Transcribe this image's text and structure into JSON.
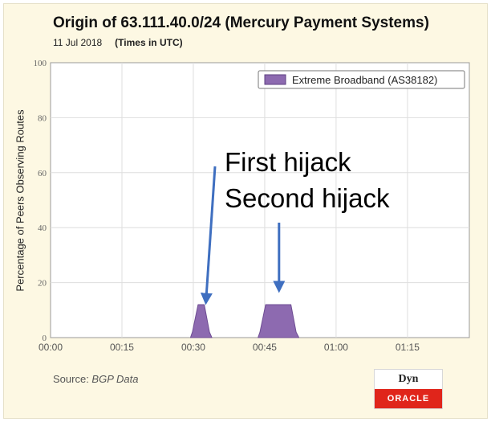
{
  "header": {
    "title": "Origin of 63.111.40.0/24 (Mercury Payment Systems)",
    "date": "11 Jul 2018",
    "timezone_note": "(Times in UTC)"
  },
  "footer": {
    "source_prefix": "Source: ",
    "source_name": "BGP Data"
  },
  "logo": {
    "top_text": "Dyn",
    "bottom_text": "ORACLE",
    "bottom_color": "#e0251b"
  },
  "annotations": [
    {
      "text": "First hijack",
      "target_x_minutes": 32,
      "target_y": 13
    },
    {
      "text": "Second hijack",
      "target_x_minutes": 47,
      "target_y": 18
    }
  ],
  "chart_data": {
    "type": "area",
    "ylabel": "Percentage of Peers Observing Routes",
    "xlim_minutes": [
      0,
      88
    ],
    "ylim": [
      0,
      100
    ],
    "x_ticks": [
      {
        "minutes": 0,
        "label": "00:00"
      },
      {
        "minutes": 15,
        "label": "00:15"
      },
      {
        "minutes": 30,
        "label": "00:30"
      },
      {
        "minutes": 45,
        "label": "00:45"
      },
      {
        "minutes": 60,
        "label": "01:00"
      },
      {
        "minutes": 75,
        "label": "01:15"
      }
    ],
    "y_ticks": [
      0,
      20,
      40,
      60,
      80,
      100
    ],
    "grid": true,
    "legend_position": "top-right",
    "series": [
      {
        "name": "Extreme Broadband (AS38182)",
        "color": "#8d6ab0",
        "segments": [
          {
            "x_minutes": [
              29.4,
              29.8,
              31.0,
              32.3,
              33.4,
              33.9
            ],
            "y": [
              0,
              2,
              12,
              12,
              2,
              0
            ]
          },
          {
            "x_minutes": [
              43.6,
              44.0,
              45.2,
              50.5,
              51.6,
              52.2
            ],
            "y": [
              0,
              2,
              12,
              12,
              2,
              0
            ]
          }
        ]
      }
    ]
  }
}
